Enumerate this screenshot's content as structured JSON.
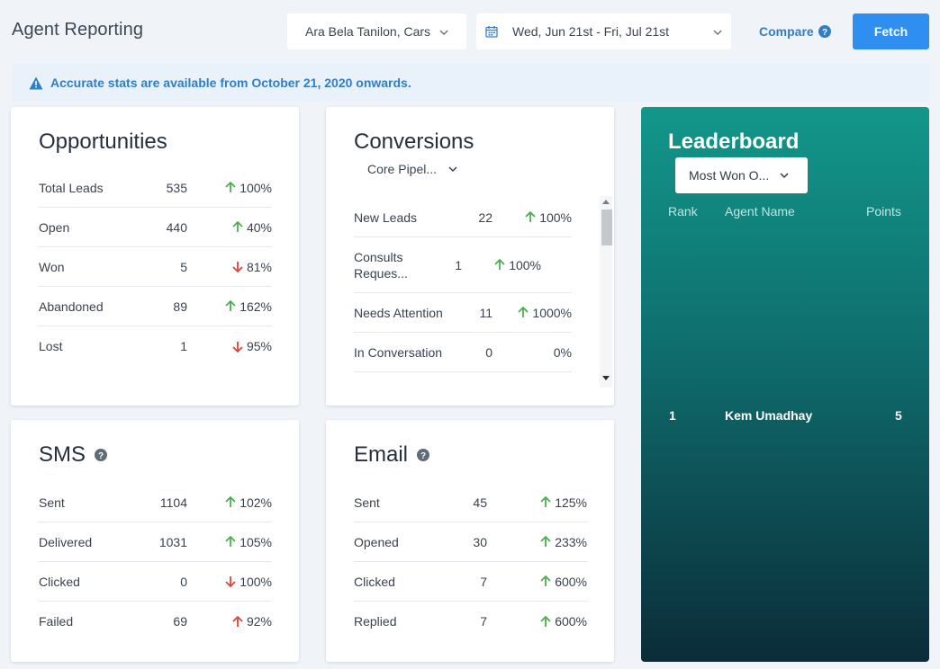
{
  "header": {
    "title": "Agent Reporting",
    "agent_select": "Ara Bela Tanilon, Cars",
    "date_range": "Wed, Jun 21st - Fri, Jul 21st",
    "compare_label": "Compare",
    "fetch_label": "Fetch"
  },
  "banner": {
    "text": "Accurate stats are available from October 21, 2020 onwards."
  },
  "colors": {
    "accent": "#2e8ff0",
    "link": "#2f7fc8",
    "up": "#4caf50",
    "down": "#d9463b"
  },
  "opportunities": {
    "title": "Opportunities",
    "rows": [
      {
        "label": "Total Leads",
        "value": "535",
        "pct": "100%",
        "dir": "up"
      },
      {
        "label": "Open",
        "value": "440",
        "pct": "40%",
        "dir": "up"
      },
      {
        "label": "Won",
        "value": "5",
        "pct": "81%",
        "dir": "down"
      },
      {
        "label": "Abandoned",
        "value": "89",
        "pct": "162%",
        "dir": "up"
      },
      {
        "label": "Lost",
        "value": "1",
        "pct": "95%",
        "dir": "down"
      }
    ]
  },
  "conversions": {
    "title": "Conversions",
    "pipeline": "Core Pipel...",
    "rows": [
      {
        "label": "New Leads",
        "value": "22",
        "pct": "100%",
        "dir": "up"
      },
      {
        "label": "Consults Reques...",
        "value": "1",
        "pct": "100%",
        "dir": "up"
      },
      {
        "label": "Needs Attention",
        "value": "11",
        "pct": "1000%",
        "dir": "up"
      },
      {
        "label": "In Conversation",
        "value": "0",
        "pct": "0%",
        "dir": "none"
      }
    ]
  },
  "sms": {
    "title": "SMS",
    "rows": [
      {
        "label": "Sent",
        "value": "1104",
        "pct": "102%",
        "dir": "up"
      },
      {
        "label": "Delivered",
        "value": "1031",
        "pct": "105%",
        "dir": "up"
      },
      {
        "label": "Clicked",
        "value": "0",
        "pct": "100%",
        "dir": "down"
      },
      {
        "label": "Failed",
        "value": "69",
        "pct": "92%",
        "dir": "up-red"
      }
    ]
  },
  "email": {
    "title": "Email",
    "rows": [
      {
        "label": "Sent",
        "value": "45",
        "pct": "125%",
        "dir": "up"
      },
      {
        "label": "Opened",
        "value": "30",
        "pct": "233%",
        "dir": "up"
      },
      {
        "label": "Clicked",
        "value": "7",
        "pct": "600%",
        "dir": "up"
      },
      {
        "label": "Replied",
        "value": "7",
        "pct": "600%",
        "dir": "up"
      }
    ]
  },
  "leaderboard": {
    "title": "Leaderboard",
    "metric": "Most Won O...",
    "columns": {
      "rank": "Rank",
      "agent": "Agent Name",
      "points": "Points"
    },
    "rows": [
      {
        "rank": "1",
        "agent": "Kem Umadhay",
        "points": "5"
      }
    ]
  }
}
